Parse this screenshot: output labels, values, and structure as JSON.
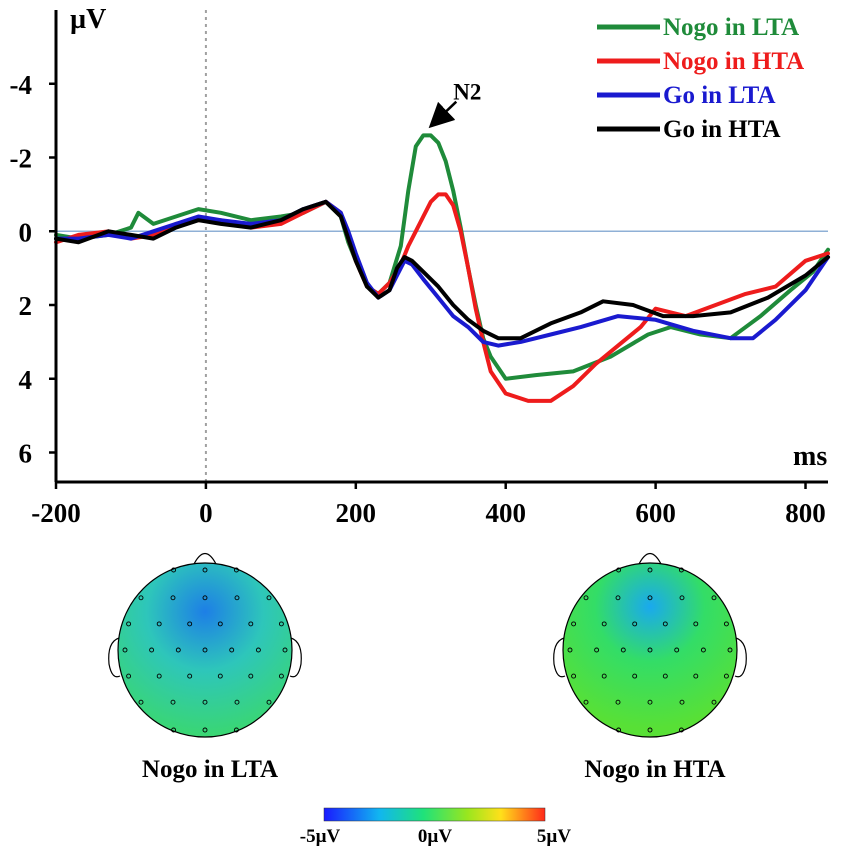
{
  "chart_data": {
    "type": "line",
    "xlabel": "ms",
    "ylabel": "µV",
    "xlim": [
      -200,
      830
    ],
    "ylim": [
      -6,
      6.8
    ],
    "y_inverted": true,
    "xticks": [
      -200,
      0,
      200,
      400,
      600,
      800
    ],
    "xtick_labels": [
      "-200",
      "0",
      "200",
      "400",
      "600",
      "800"
    ],
    "yticks": [
      -4,
      -2,
      0,
      2,
      4,
      6
    ],
    "ytick_labels": [
      "-4",
      "-2",
      "0",
      "2",
      "4",
      "6"
    ],
    "baseline": 0,
    "stimulus_onset": 0,
    "series": [
      {
        "name": "Nogo in LTA",
        "color": "#1f8b3a",
        "x": [
          -200,
          -170,
          -130,
          -100,
          -90,
          -70,
          -40,
          -10,
          20,
          60,
          100,
          130,
          160,
          180,
          190,
          200,
          215,
          230,
          245,
          260,
          270,
          280,
          290,
          300,
          310,
          320,
          330,
          340,
          350,
          360,
          370,
          380,
          400,
          440,
          490,
          540,
          590,
          620,
          660,
          700,
          740,
          780,
          810,
          830
        ],
        "y": [
          0.1,
          0.2,
          0.1,
          -0.1,
          -0.5,
          -0.2,
          -0.4,
          -0.6,
          -0.5,
          -0.3,
          -0.4,
          -0.5,
          -0.8,
          -0.4,
          0.3,
          0.8,
          1.5,
          1.7,
          1.4,
          0.4,
          -1.1,
          -2.3,
          -2.6,
          -2.6,
          -2.4,
          -1.9,
          -1.1,
          -0.1,
          1.0,
          2.0,
          2.9,
          3.4,
          4.0,
          3.9,
          3.8,
          3.4,
          2.8,
          2.6,
          2.8,
          2.9,
          2.3,
          1.6,
          1.1,
          0.5
        ]
      },
      {
        "name": "Nogo in HTA",
        "color": "#ee1c1c",
        "x": [
          -200,
          -170,
          -130,
          -100,
          -70,
          -40,
          -10,
          20,
          60,
          100,
          130,
          160,
          180,
          190,
          200,
          215,
          230,
          245,
          260,
          270,
          280,
          290,
          300,
          310,
          320,
          330,
          340,
          350,
          360,
          370,
          380,
          400,
          430,
          460,
          490,
          520,
          550,
          580,
          600,
          640,
          680,
          720,
          760,
          800,
          830
        ],
        "y": [
          0.3,
          0.1,
          0.0,
          0.2,
          0.1,
          -0.2,
          -0.3,
          -0.3,
          -0.1,
          -0.2,
          -0.5,
          -0.8,
          -0.5,
          0.2,
          0.8,
          1.5,
          1.7,
          1.4,
          0.9,
          0.4,
          0.0,
          -0.4,
          -0.8,
          -1.0,
          -1.0,
          -0.7,
          0.0,
          1.0,
          2.1,
          3.0,
          3.8,
          4.4,
          4.6,
          4.6,
          4.2,
          3.6,
          3.1,
          2.6,
          2.1,
          2.3,
          2.0,
          1.7,
          1.5,
          0.8,
          0.6
        ]
      },
      {
        "name": "Go in LTA",
        "color": "#1a1acf",
        "x": [
          -200,
          -170,
          -130,
          -100,
          -70,
          -40,
          -10,
          20,
          60,
          100,
          130,
          160,
          180,
          190,
          200,
          215,
          230,
          245,
          255,
          265,
          275,
          290,
          310,
          330,
          350,
          370,
          390,
          420,
          460,
          500,
          550,
          600,
          650,
          700,
          730,
          760,
          800,
          830
        ],
        "y": [
          0.2,
          0.2,
          0.1,
          0.2,
          0.0,
          -0.2,
          -0.4,
          -0.3,
          -0.2,
          -0.3,
          -0.6,
          -0.8,
          -0.5,
          0.0,
          0.6,
          1.4,
          1.8,
          1.6,
          1.2,
          0.8,
          0.9,
          1.3,
          1.8,
          2.3,
          2.6,
          3.0,
          3.1,
          3.0,
          2.8,
          2.6,
          2.3,
          2.4,
          2.7,
          2.9,
          2.9,
          2.4,
          1.6,
          0.7
        ]
      },
      {
        "name": "Go in HTA",
        "color": "#000000",
        "x": [
          -200,
          -170,
          -130,
          -100,
          -70,
          -40,
          -10,
          20,
          60,
          100,
          130,
          160,
          180,
          190,
          200,
          215,
          230,
          245,
          255,
          265,
          275,
          290,
          310,
          330,
          350,
          370,
          390,
          420,
          460,
          500,
          530,
          570,
          610,
          650,
          700,
          750,
          800,
          830
        ],
        "y": [
          0.2,
          0.3,
          0.0,
          0.1,
          0.2,
          -0.1,
          -0.3,
          -0.2,
          -0.1,
          -0.3,
          -0.6,
          -0.8,
          -0.4,
          0.2,
          0.8,
          1.5,
          1.8,
          1.6,
          1.0,
          0.7,
          0.8,
          1.1,
          1.5,
          2.0,
          2.4,
          2.7,
          2.9,
          2.9,
          2.5,
          2.2,
          1.9,
          2.0,
          2.3,
          2.3,
          2.2,
          1.8,
          1.2,
          0.7
        ]
      }
    ],
    "legend": {
      "placement": "top-right",
      "entries": [
        "Nogo in LTA",
        "Nogo in HTA",
        "Go in LTA",
        "Go in HTA"
      ]
    },
    "annotations": [
      {
        "text": "N2",
        "x": 290,
        "y": -2.7
      }
    ],
    "axis_color": "#000000",
    "baseline_color": "#8fb0d6",
    "onset_line_color": "#a0a0a0"
  },
  "topomaps": [
    {
      "label": "Nogo in LTA",
      "frontal_color": "#1d7fe6",
      "mid_color": "#2ec6ba",
      "posterior_color": "#3bd86c"
    },
    {
      "label": "Nogo in HTA",
      "frontal_color": "#1aa9ee",
      "mid_color": "#33dd67",
      "posterior_color": "#58e036"
    }
  ],
  "colorbar": {
    "min_label": "-5µV",
    "mid_label": "0µV",
    "max_label": "5µV",
    "colors": [
      "#1a1aff",
      "#11b6f0",
      "#1fe27a",
      "#9ae61e",
      "#ffe01a",
      "#ff2a1a"
    ]
  }
}
